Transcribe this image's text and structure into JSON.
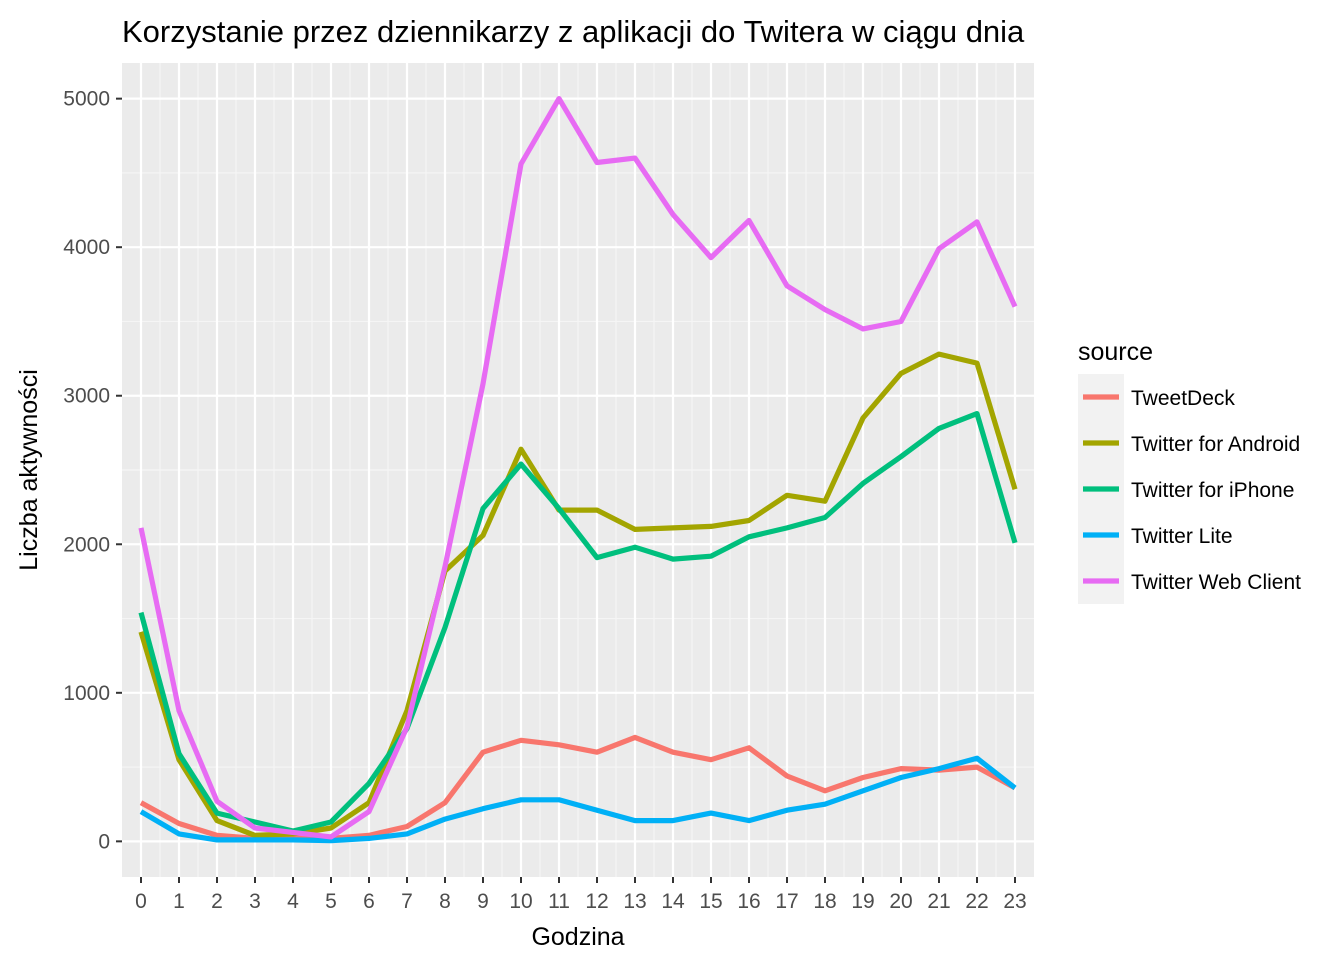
{
  "chart_data": {
    "type": "line",
    "title": "Korzystanie przez dziennikarzy z aplikacji do Twitera w ciągu dnia",
    "xlabel": "Godzina",
    "ylabel": "Liczba aktywności",
    "x": [
      0,
      1,
      2,
      3,
      4,
      5,
      6,
      7,
      8,
      9,
      10,
      11,
      12,
      13,
      14,
      15,
      16,
      17,
      18,
      19,
      20,
      21,
      22,
      23
    ],
    "x_tick_labels": [
      "0",
      "1",
      "2",
      "3",
      "4",
      "5",
      "6",
      "7",
      "8",
      "9",
      "10",
      "11",
      "12",
      "13",
      "14",
      "15",
      "16",
      "17",
      "18",
      "19",
      "20",
      "21",
      "22",
      "23"
    ],
    "y_ticks": [
      0,
      1000,
      2000,
      3000,
      4000,
      5000
    ],
    "y_tick_labels": [
      "0",
      "1000",
      "2000",
      "3000",
      "4000",
      "5000"
    ],
    "xlim": [
      -0.5,
      23.5
    ],
    "ylim": [
      -240,
      5240
    ],
    "grid": true,
    "legend": {
      "title": "source",
      "position": "right"
    },
    "series": [
      {
        "name": "TweetDeck",
        "color": "#F8766D",
        "values": [
          260,
          120,
          40,
          20,
          30,
          20,
          40,
          100,
          260,
          600,
          680,
          650,
          600,
          700,
          600,
          550,
          630,
          440,
          340,
          430,
          490,
          480,
          500,
          360
        ]
      },
      {
        "name": "Twitter for Android",
        "color": "#A3A500",
        "values": [
          1410,
          550,
          140,
          40,
          50,
          90,
          260,
          880,
          1820,
          2060,
          2640,
          2230,
          2230,
          2100,
          2110,
          2120,
          2160,
          2330,
          2290,
          2850,
          3150,
          3280,
          3220,
          2370
        ]
      },
      {
        "name": "Twitter for iPhone",
        "color": "#00BF7D",
        "values": [
          1540,
          590,
          190,
          130,
          70,
          130,
          390,
          760,
          1440,
          2240,
          2540,
          2240,
          1910,
          1980,
          1900,
          1920,
          2050,
          2110,
          2180,
          2410,
          2590,
          2780,
          2880,
          2010
        ]
      },
      {
        "name": "Twitter Lite",
        "color": "#00B0F6",
        "values": [
          200,
          50,
          10,
          10,
          10,
          5,
          20,
          50,
          150,
          220,
          280,
          280,
          210,
          140,
          140,
          190,
          140,
          210,
          250,
          340,
          430,
          490,
          560,
          360
        ]
      },
      {
        "name": "Twitter Web Client",
        "color": "#E76BF3",
        "values": [
          2110,
          880,
          270,
          90,
          60,
          30,
          200,
          770,
          1850,
          3080,
          4560,
          5000,
          4570,
          4600,
          4220,
          3930,
          4180,
          3740,
          3580,
          3450,
          3500,
          3990,
          4170,
          3600
        ]
      }
    ]
  },
  "style": {
    "panel_background": "#EBEBEB",
    "major_grid": "#FFFFFF",
    "minor_grid": "#F5F5F5",
    "legend_key_background": "#F2F2F2"
  }
}
